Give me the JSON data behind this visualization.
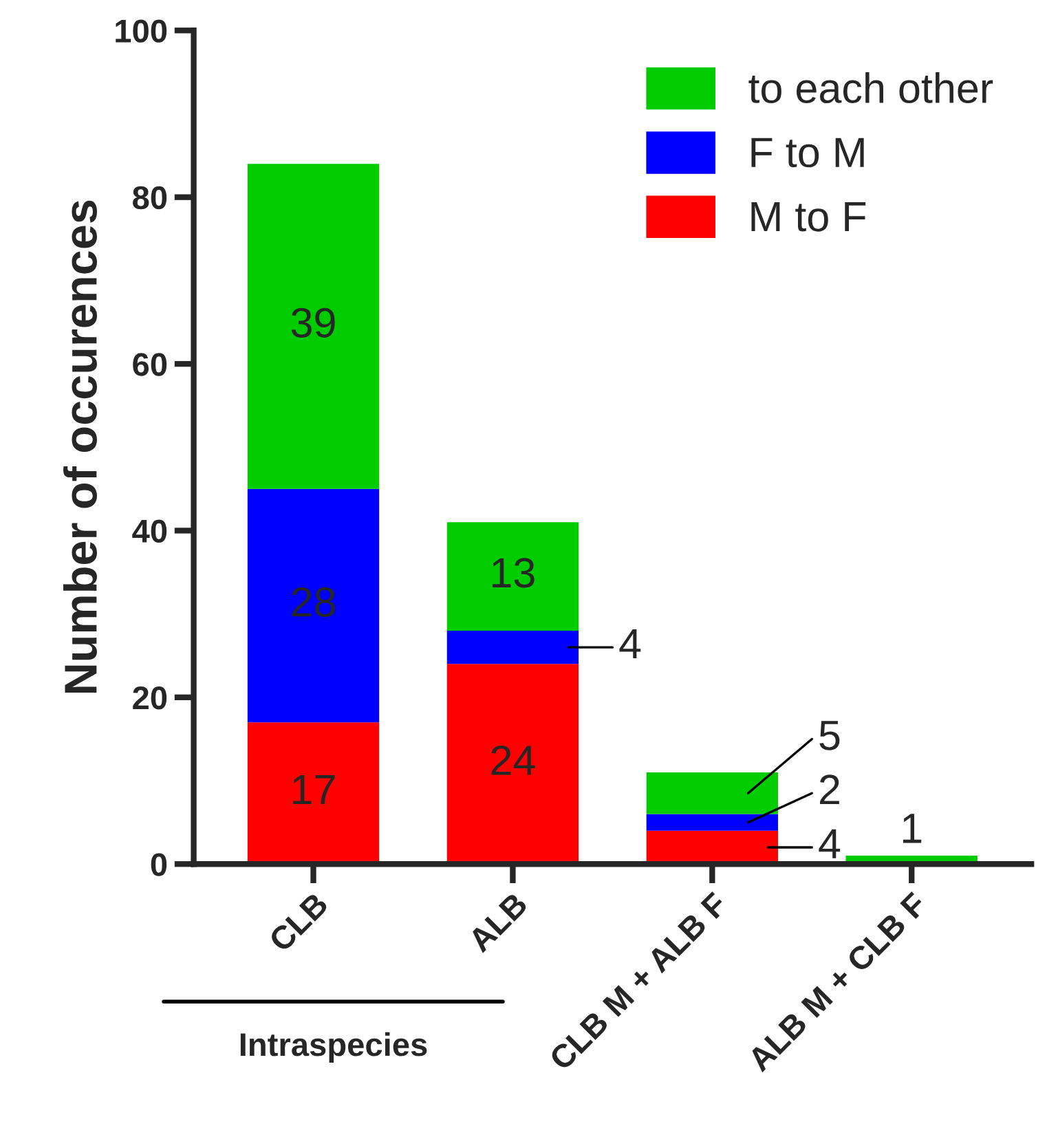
{
  "chart_data": {
    "type": "bar",
    "stacked": true,
    "ylabel": "Number of occurences",
    "categories": [
      "CLB",
      "ALB",
      "CLB M + ALB F",
      "ALB M + CLB F"
    ],
    "series": [
      {
        "name": "M to F",
        "color": "#ff0000",
        "values": [
          17,
          24,
          4,
          0
        ],
        "value_labels": [
          "17",
          "24",
          "4",
          null
        ]
      },
      {
        "name": "F to M",
        "color": "#0000ff",
        "values": [
          28,
          4,
          2,
          0
        ],
        "value_labels": [
          "28",
          "4",
          "2",
          null
        ]
      },
      {
        "name": "to each other",
        "color": "#00cc00",
        "values": [
          39,
          13,
          5,
          1
        ],
        "value_labels": [
          "39",
          "13",
          "5",
          "1"
        ]
      }
    ],
    "ylim": [
      0,
      100
    ],
    "yticks": [
      0,
      20,
      40,
      60,
      80,
      100
    ],
    "grid": false,
    "legend": "top right",
    "annotations": [
      "Intraspecies"
    ]
  }
}
